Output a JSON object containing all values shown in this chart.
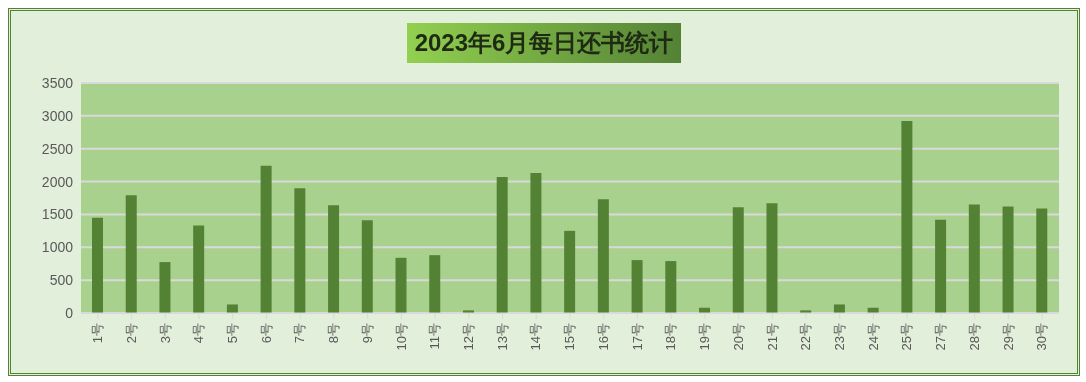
{
  "chart_data": {
    "type": "bar",
    "title": "2023年6月每日还书统计",
    "categories": [
      "1号",
      "2号",
      "3号",
      "4号",
      "5号",
      "6号",
      "7号",
      "8号",
      "9号",
      "10号",
      "11号",
      "12号",
      "13号",
      "14号",
      "15号",
      "16号",
      "17号",
      "18号",
      "19号",
      "20号",
      "21号",
      "22号",
      "23号",
      "24号",
      "25号",
      "27号",
      "28号",
      "29号",
      "30号"
    ],
    "values": [
      1450,
      1790,
      775,
      1330,
      130,
      2240,
      1900,
      1640,
      1410,
      840,
      880,
      40,
      2070,
      2130,
      1250,
      1730,
      805,
      790,
      80,
      1610,
      1670,
      40,
      130,
      80,
      2920,
      1420,
      1650,
      1620,
      1590
    ],
    "color": "#548235",
    "ylim": [
      0,
      3500
    ],
    "yticks": [
      0,
      500,
      1000,
      1500,
      2000,
      2500,
      3000,
      3500
    ],
    "grid": "y",
    "legend": false
  }
}
